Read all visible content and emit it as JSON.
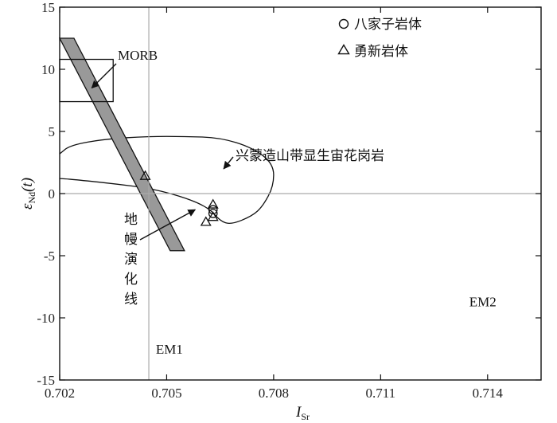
{
  "chart_data": {
    "type": "scatter",
    "title": "",
    "xlabel": "I",
    "xlabel_sub": "Sr",
    "ylabel": "ε",
    "ylabel_sub": "Nd",
    "ylabel_suffix": "(t)",
    "xlim": [
      0.702,
      0.7155
    ],
    "ylim": [
      -15,
      15
    ],
    "x_ticks": [
      {
        "value": 0.702,
        "label": "0.702"
      },
      {
        "value": 0.705,
        "label": "0.705"
      },
      {
        "value": 0.708,
        "label": "0.708"
      },
      {
        "value": 0.711,
        "label": "0.711"
      },
      {
        "value": 0.714,
        "label": "0.714"
      }
    ],
    "y_ticks": [
      {
        "value": 15,
        "label": "15"
      },
      {
        "value": 10,
        "label": "10"
      },
      {
        "value": 5,
        "label": "5"
      },
      {
        "value": 0,
        "label": "0"
      },
      {
        "value": -5,
        "label": "-5"
      },
      {
        "value": -10,
        "label": "-10"
      },
      {
        "value": -15,
        "label": "-15"
      }
    ],
    "reference_lines": {
      "x": 0.7045,
      "y": 0
    },
    "regions": {
      "morb_box": {
        "x": [
          0.702,
          0.7035
        ],
        "y": [
          7.4,
          10.8
        ],
        "label": "MORB"
      },
      "mantle_array": {
        "polygon": [
          [
            0.702,
            12.5
          ],
          [
            0.7024,
            12.5
          ],
          [
            0.7055,
            -4.6
          ],
          [
            0.7051,
            -4.6
          ]
        ],
        "label": "地幔演化线"
      },
      "xingmeng_field": {
        "label": "兴蒙造山带显生宙花岗岩",
        "outline": [
          [
            0.702,
            3.2
          ],
          [
            0.7023,
            3.9
          ],
          [
            0.7033,
            4.4
          ],
          [
            0.7045,
            4.6
          ],
          [
            0.7055,
            4.6
          ],
          [
            0.7065,
            4.5
          ],
          [
            0.7074,
            3.7
          ],
          [
            0.708,
            2.4
          ],
          [
            0.708,
            0.6
          ],
          [
            0.7077,
            -1.0
          ],
          [
            0.7074,
            -1.8
          ],
          [
            0.7068,
            -2.5
          ],
          [
            0.7065,
            -2.2
          ],
          [
            0.7062,
            -1.2
          ],
          [
            0.7056,
            -0.4
          ],
          [
            0.7046,
            0.4
          ],
          [
            0.7035,
            0.8
          ],
          [
            0.7025,
            1.1
          ],
          [
            0.7021,
            1.2
          ],
          [
            0.702,
            1.2
          ]
        ]
      }
    },
    "series": [
      {
        "name": "八家子岩体",
        "marker": "circle",
        "points": [
          [
            0.7063,
            -1.6
          ],
          [
            0.7063,
            -1.3
          ]
        ]
      },
      {
        "name": "勇新岩体",
        "marker": "triangle",
        "points": [
          [
            0.7044,
            1.4
          ],
          [
            0.7061,
            -2.3
          ],
          [
            0.7063,
            -0.9
          ],
          [
            0.7063,
            -1.9
          ]
        ]
      }
    ],
    "annotations": [
      {
        "text": "MORB",
        "arrow_to": [
          0.7029,
          8.5
        ]
      },
      {
        "text": "兴蒙造山带显生宙花岗岩",
        "arrow_to": [
          0.7066,
          2.0
        ]
      },
      {
        "text": "地幔演化线",
        "arrow_to": [
          0.7058,
          -1.3
        ]
      },
      {
        "text": "EM1",
        "at": [
          0.7057,
          -12.5
        ]
      },
      {
        "text": "EM2",
        "at": [
          0.7142,
          -8.7
        ]
      }
    ],
    "legend": {
      "placement": "top-right"
    },
    "grid": false
  }
}
